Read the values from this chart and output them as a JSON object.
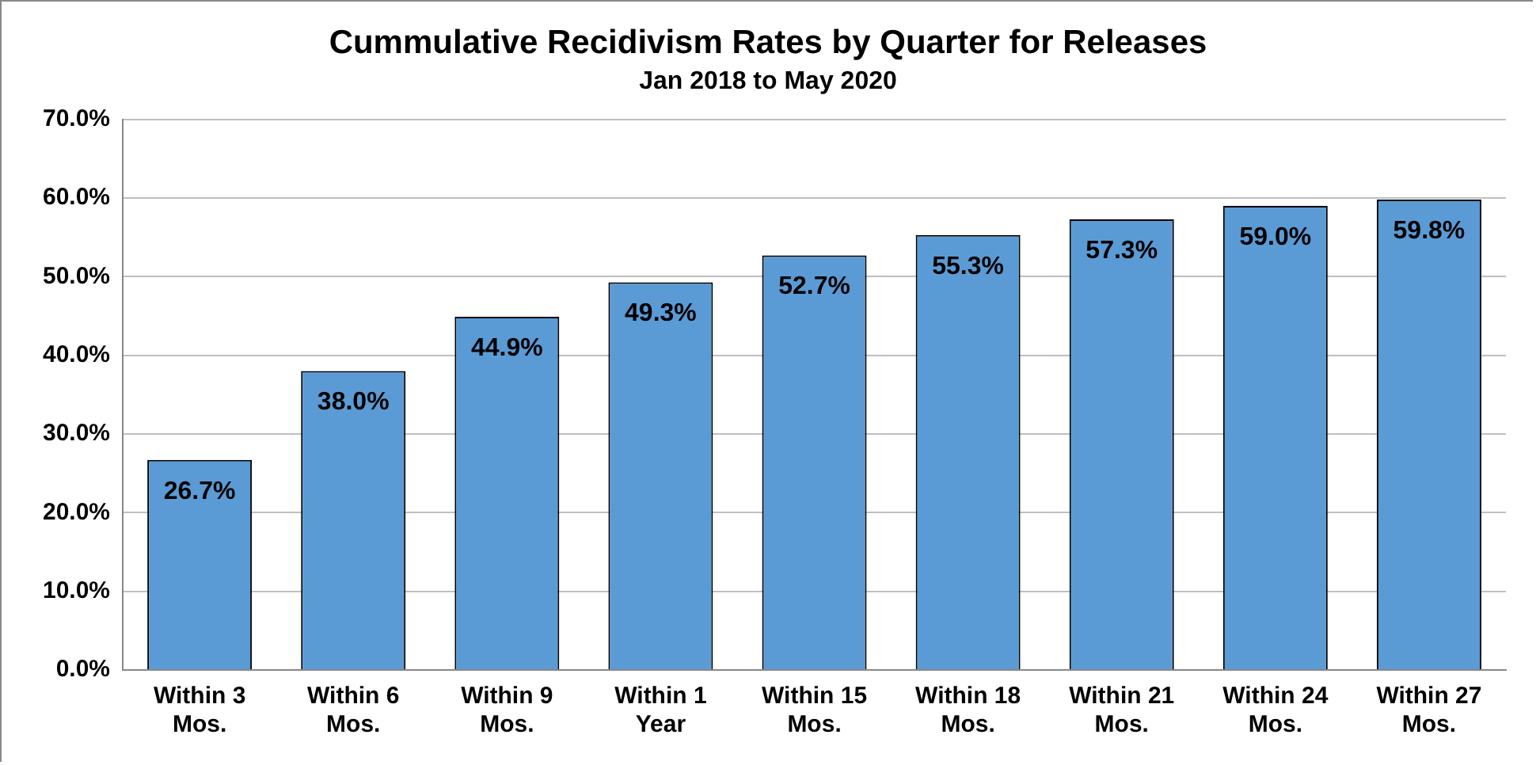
{
  "chart_data": {
    "type": "bar",
    "title": "Cummulative Recidivism Rates by Quarter for Releases",
    "subtitle": "Jan 2018 to May 2020",
    "categories": [
      "Within 3 Mos.",
      "Within 6 Mos.",
      "Within 9 Mos.",
      "Within 1 Year",
      "Within 15 Mos.",
      "Within 18 Mos.",
      "Within 21 Mos.",
      "Within 24 Mos.",
      "Within 27 Mos."
    ],
    "values": [
      26.7,
      38.0,
      44.9,
      49.3,
      52.7,
      55.3,
      57.3,
      59.0,
      59.8
    ],
    "value_labels": [
      "26.7%",
      "38.0%",
      "44.9%",
      "49.3%",
      "52.7%",
      "55.3%",
      "57.3%",
      "59.0%",
      "59.8%"
    ],
    "color": "#5b9bd5",
    "ylim": [
      0,
      70
    ],
    "yticks": [
      {
        "value": 0,
        "label": "0.0%"
      },
      {
        "value": 10,
        "label": "10.0%"
      },
      {
        "value": 20,
        "label": "20.0%"
      },
      {
        "value": 30,
        "label": "30.0%"
      },
      {
        "value": 40,
        "label": "40.0%"
      },
      {
        "value": 50,
        "label": "50.0%"
      },
      {
        "value": 60,
        "label": "60.0%"
      },
      {
        "value": 70,
        "label": "70.0%"
      }
    ],
    "grid": "y"
  }
}
